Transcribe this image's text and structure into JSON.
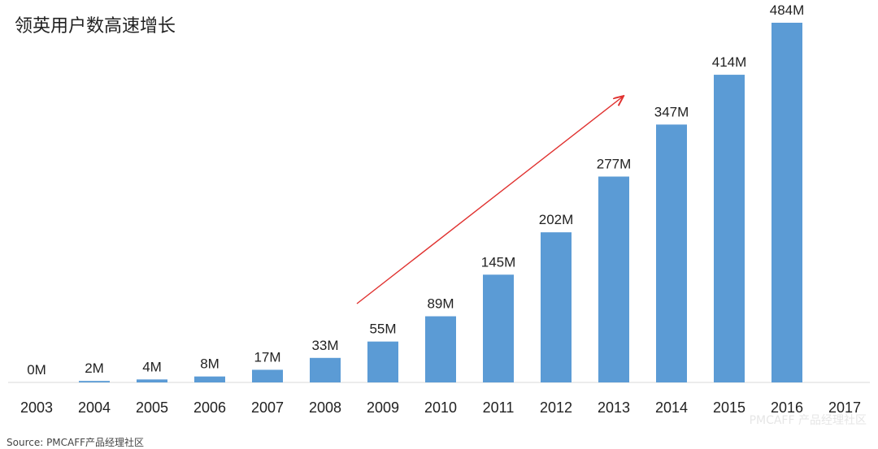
{
  "chart_data": {
    "type": "bar",
    "title": "领英用户数高速增长",
    "categories": [
      "2003",
      "2004",
      "2005",
      "2006",
      "2007",
      "2008",
      "2009",
      "2010",
      "2011",
      "2012",
      "2013",
      "2014",
      "2015",
      "2016",
      "2017"
    ],
    "values": [
      0,
      2,
      4,
      8,
      17,
      33,
      55,
      89,
      145,
      202,
      277,
      347,
      414,
      484,
      null
    ],
    "data_labels": [
      "0M",
      "2M",
      "4M",
      "8M",
      "17M",
      "33M",
      "55M",
      "89M",
      "145M",
      "202M",
      "277M",
      "347M",
      "414M",
      "484M",
      ""
    ],
    "ylim": [
      0,
      484
    ],
    "grid": false,
    "bar_color": "#5b9bd5",
    "arrow_color": "#e0312f",
    "trend_arrow": {
      "from_category": "2009",
      "to_category": "2014"
    }
  },
  "source": "Source:  PMCAFF产品经理社区",
  "watermark": "PMCAFF 产品经理社区"
}
